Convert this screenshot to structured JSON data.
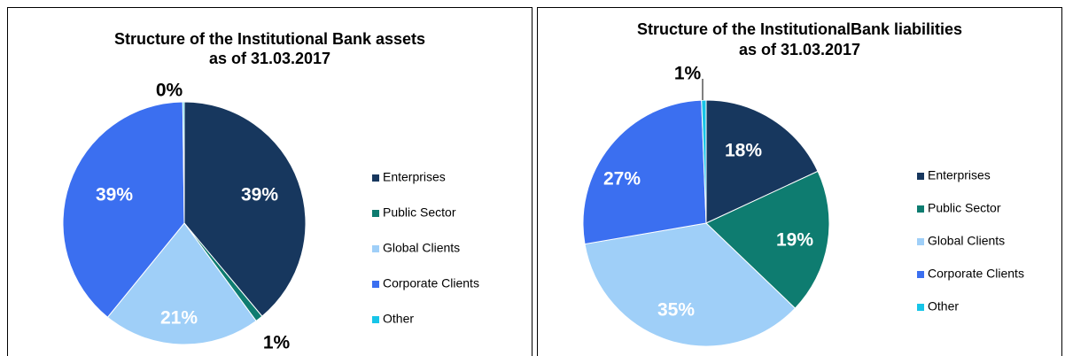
{
  "chart_data": [
    {
      "type": "pie",
      "title": "Structure of the Institutional Bank assets",
      "subtitle": "as of 31.03.2017",
      "legend_position": "right",
      "slices": [
        {
          "label": "Enterprises",
          "value": 39,
          "display": "39%",
          "color": "#17375E"
        },
        {
          "label": "Public Sector",
          "value": 1,
          "display": "1%",
          "color": "#0E7C70"
        },
        {
          "label": "Global Clients",
          "value": 21,
          "display": "21%",
          "color": "#9FCFF8"
        },
        {
          "label": "Corporate Clients",
          "value": 39,
          "display": "39%",
          "color": "#3B6FF0"
        },
        {
          "label": "Other",
          "value": 0.2,
          "display": "0%",
          "color": "#17C5E8"
        }
      ]
    },
    {
      "type": "pie",
      "title": "Structure of the InstitutionalBank liabilities",
      "subtitle": "as of 31.03.2017",
      "legend_position": "right",
      "slices": [
        {
          "label": "Enterprises",
          "value": 18,
          "display": "18%",
          "color": "#17375E"
        },
        {
          "label": "Public Sector",
          "value": 19,
          "display": "19%",
          "color": "#0E7C70"
        },
        {
          "label": "Global Clients",
          "value": 35,
          "display": "35%",
          "color": "#9FCFF8"
        },
        {
          "label": "Corporate Clients",
          "value": 27,
          "display": "27%",
          "color": "#3B6FF0"
        },
        {
          "label": "Other",
          "value": 0.6,
          "display": "1%",
          "color": "#17C5E8"
        }
      ]
    }
  ]
}
